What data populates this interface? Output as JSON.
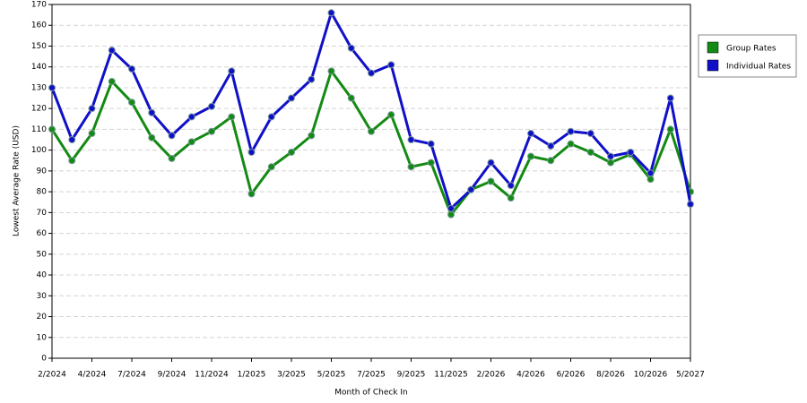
{
  "chart_data": {
    "type": "line",
    "x_label": "Month of Check In",
    "y_label": "Lowest Average Rate (USD)",
    "categories": [
      "2/2024",
      null,
      "4/2024",
      null,
      "7/2024",
      null,
      "9/2024",
      null,
      "11/2024",
      null,
      "1/2025",
      null,
      "3/2025",
      null,
      "5/2025",
      null,
      "7/2025",
      null,
      "9/2025",
      null,
      "11/2025",
      null,
      "2/2026",
      null,
      "4/2026",
      null,
      "6/2026",
      null,
      "8/2026",
      null,
      "10/2026",
      null,
      "5/2027"
    ],
    "series": [
      {
        "name": "Group Rates",
        "color": "#138a13",
        "values": [
          110,
          95,
          108,
          133,
          123,
          106,
          96,
          104,
          109,
          116,
          79,
          92,
          99,
          107,
          138,
          125,
          109,
          117,
          92,
          94,
          69,
          81,
          85,
          77,
          97,
          95,
          103,
          99,
          94,
          98,
          86,
          110,
          80
        ]
      },
      {
        "name": "Individual Rates",
        "color": "#1010c8",
        "values": [
          130,
          105,
          120,
          148,
          139,
          118,
          107,
          116,
          121,
          138,
          99,
          116,
          125,
          134,
          166,
          149,
          137,
          141,
          105,
          103,
          72,
          81,
          94,
          83,
          108,
          102,
          109,
          108,
          97,
          99,
          89,
          125,
          74
        ]
      }
    ],
    "ylim": [
      0,
      170
    ],
    "yticks": [
      0,
      10,
      20,
      30,
      40,
      50,
      60,
      70,
      80,
      90,
      100,
      110,
      120,
      130,
      140,
      150,
      160,
      170
    ],
    "grid": true,
    "legend": "right"
  }
}
